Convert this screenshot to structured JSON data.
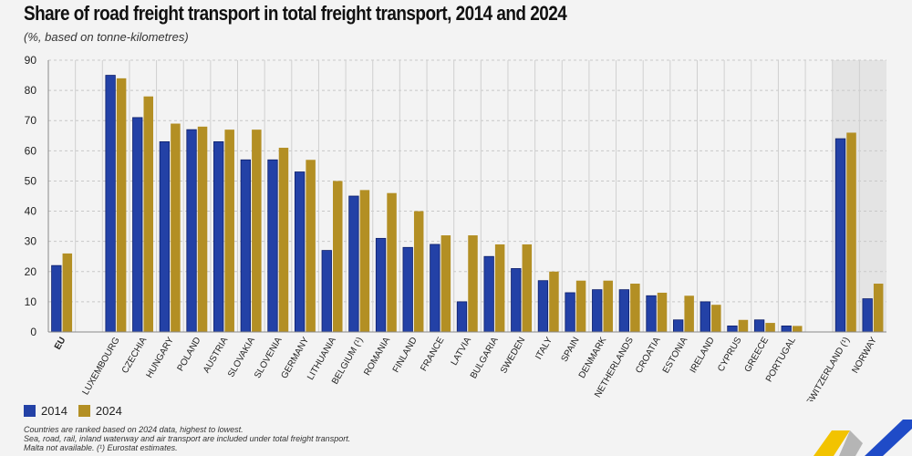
{
  "header": {
    "title": "Share of road freight transport in total freight transport, 2014 and 2024",
    "subtitle": "(%, based on tonne-kilometres)"
  },
  "colors": {
    "series_2014": "#2341a6",
    "series_2024": "#b38f24",
    "highlight_bg": "#e4e4e4"
  },
  "chart_data": {
    "type": "bar",
    "title": "Share of road freight transport in total freight transport, 2014 and 2024",
    "subtitle": "(%, based on tonne-kilometres)",
    "xlabel": "",
    "ylabel": "",
    "ylim": [
      0,
      90
    ],
    "yticks": [
      0,
      10,
      20,
      30,
      40,
      50,
      60,
      70,
      80,
      90
    ],
    "grid": true,
    "legend_position": "bottom-left",
    "categories": [
      "EU",
      "",
      "LUXEMBOURG",
      "CZECHIA",
      "HUNGARY",
      "POLAND",
      "AUSTRIA",
      "SLOVAKIA",
      "SLOVENIA",
      "GERMANY",
      "LITHUANIA",
      "BELGIUM (¹)",
      "ROMANIA",
      "FINLAND",
      "FRANCE",
      "LATVIA",
      "BULGARIA",
      "SWEDEN",
      "ITALY",
      "SPAIN",
      "DENMARK",
      "NETHERLANDS",
      "CROATIA",
      "ESTONIA",
      "IRELAND",
      "CYPRUS",
      "GREECE",
      "PORTUGAL",
      "",
      "SWITZERLAND (¹)",
      "NORWAY"
    ],
    "bold_categories": [
      "EU"
    ],
    "highlighted_categories": [
      "SWITZERLAND (¹)",
      "NORWAY"
    ],
    "series": [
      {
        "name": "2014",
        "values": [
          22,
          null,
          85,
          71,
          63,
          67,
          63,
          57,
          57,
          53,
          27,
          45,
          31,
          28,
          29,
          10,
          25,
          21,
          17,
          13,
          14,
          14,
          12,
          4,
          10,
          2,
          4,
          2,
          null,
          64,
          11
        ]
      },
      {
        "name": "2024",
        "values": [
          26,
          null,
          84,
          78,
          69,
          68,
          67,
          67,
          61,
          57,
          50,
          47,
          46,
          40,
          32,
          32,
          29,
          29,
          20,
          17,
          17,
          16,
          13,
          12,
          9,
          4,
          3,
          2,
          null,
          66,
          16
        ]
      }
    ],
    "notes": [
      "Countries are ranked based on 2024 data, highest to lowest.",
      "Sea, road, rail, inland waterway and air transport are included under total freight transport.",
      "Malta not available. (¹) Eurostat estimates."
    ]
  },
  "legend": {
    "items": [
      {
        "label": "2014",
        "color": "#2341a6"
      },
      {
        "label": "2024",
        "color": "#b38f24"
      }
    ]
  },
  "logo": {
    "name": "eurostat-logo"
  }
}
